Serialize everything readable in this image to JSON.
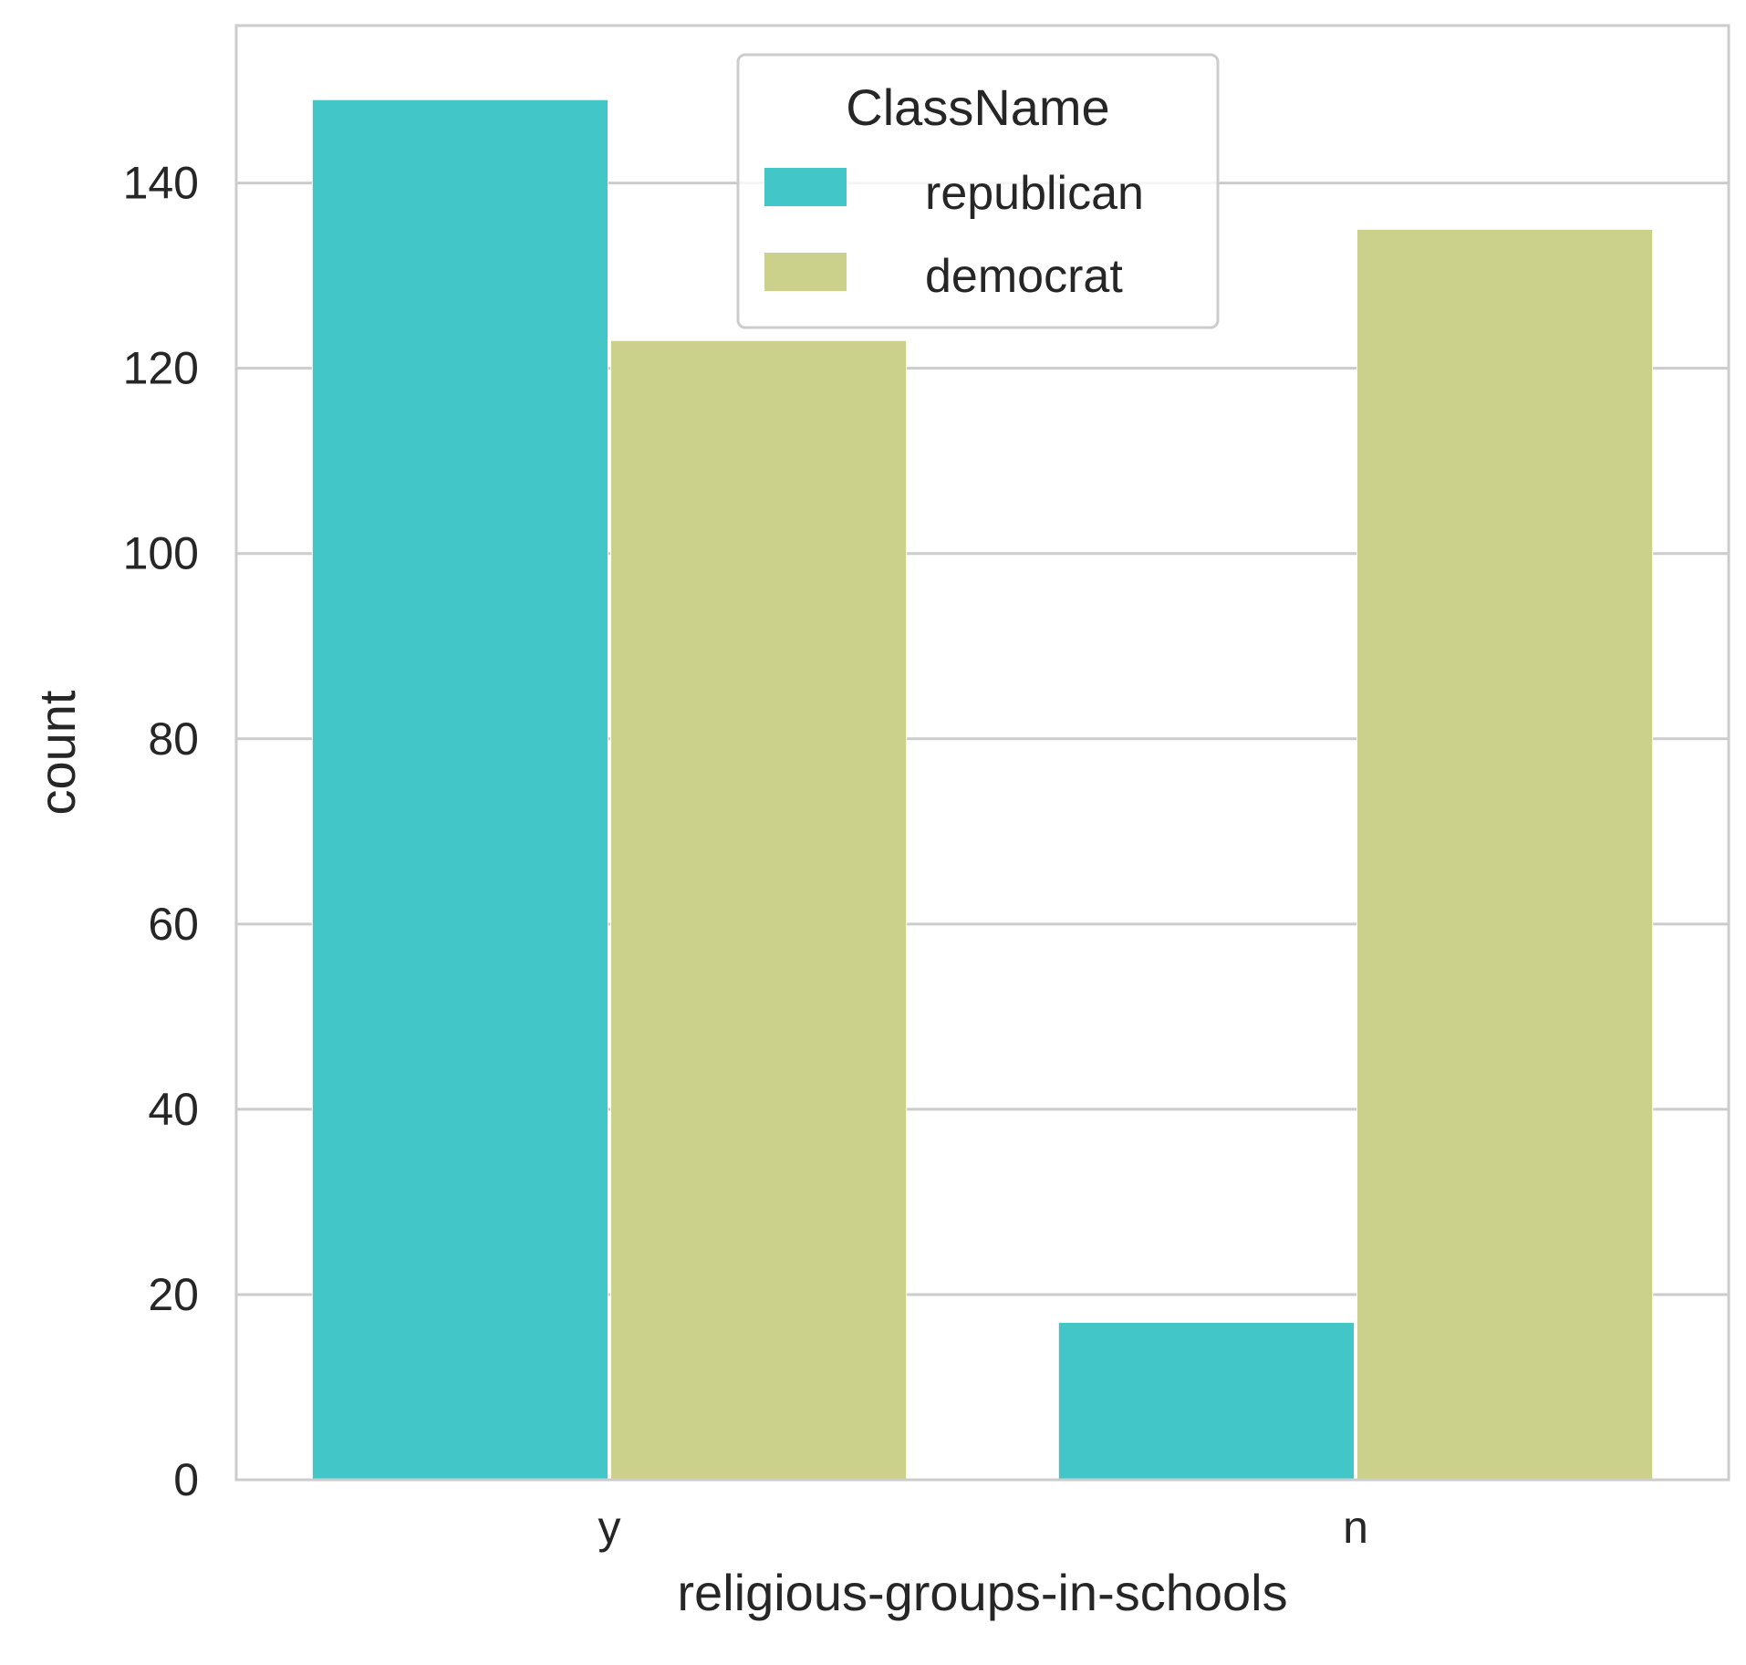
{
  "chart_data": {
    "type": "bar",
    "categories": [
      "y",
      "n"
    ],
    "series": [
      {
        "name": "republican",
        "values": [
          149,
          17
        ]
      },
      {
        "name": "democrat",
        "values": [
          123,
          135
        ]
      }
    ],
    "title": "",
    "xlabel": "religious-groups-in-schools",
    "ylabel": "count",
    "ylim": [
      0,
      157
    ],
    "yticks": [
      0,
      20,
      40,
      60,
      80,
      100,
      120,
      140
    ],
    "grid": true,
    "legend": {
      "title": "ClassName",
      "placement": "top-center"
    },
    "colors": {
      "republican": "#42c6c7",
      "democrat": "#cbd18b",
      "grid": "#cccccc",
      "frame": "#cccccc",
      "text": "#262626"
    }
  }
}
